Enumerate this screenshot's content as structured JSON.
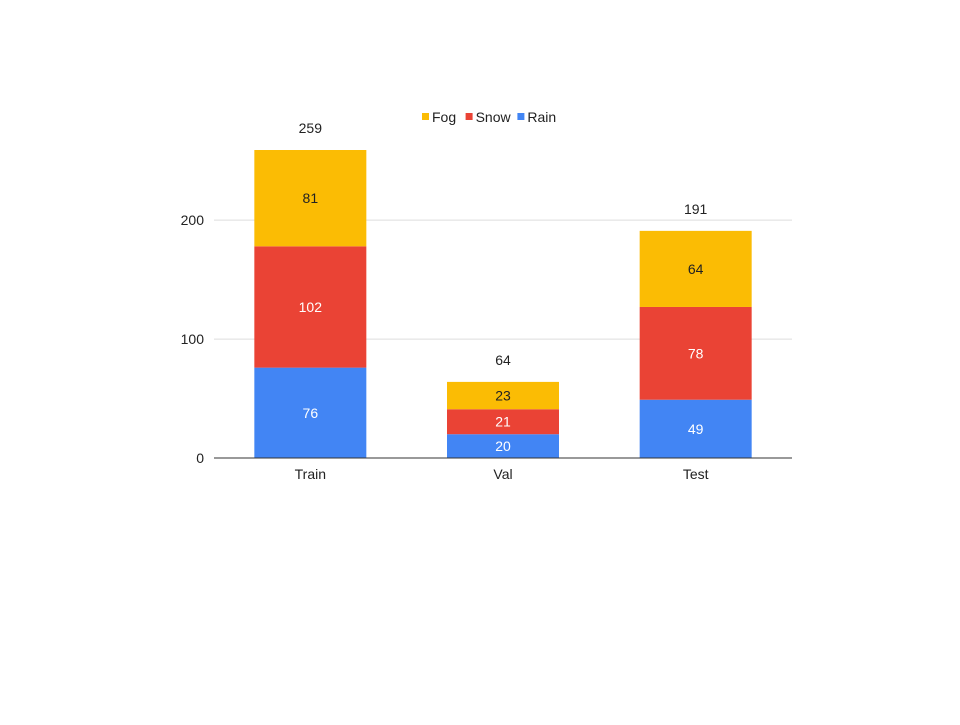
{
  "chart_data": {
    "type": "bar",
    "stacked": true,
    "categories": [
      "Train",
      "Val",
      "Test"
    ],
    "series": [
      {
        "name": "Rain",
        "color": "#4285F4",
        "values": [
          76,
          20,
          49
        ]
      },
      {
        "name": "Snow",
        "color": "#EA4335",
        "values": [
          102,
          21,
          78
        ]
      },
      {
        "name": "Fog",
        "color": "#FBBC04",
        "values": [
          81,
          23,
          64
        ]
      }
    ],
    "totals": [
      "259",
      "64",
      "191"
    ],
    "legend_order": [
      "Fog",
      "Snow",
      "Rain"
    ],
    "legend_position": "top",
    "ylim": [
      0,
      259
    ],
    "yticks": [
      0,
      100,
      200
    ],
    "grid": true
  }
}
